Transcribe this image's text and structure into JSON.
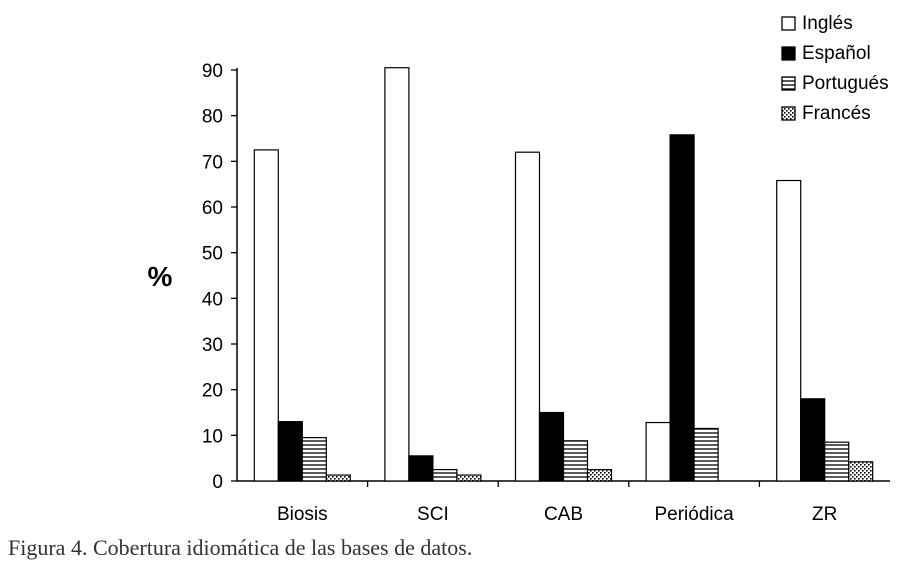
{
  "chart_data": {
    "type": "bar",
    "categories": [
      "Biosis",
      "SCI",
      "CAB",
      "Periódica",
      "ZR"
    ],
    "series": [
      {
        "name": "Inglés",
        "values": [
          72.5,
          90.5,
          72,
          12.8,
          65.8
        ]
      },
      {
        "name": "Español",
        "values": [
          13,
          5.5,
          15,
          75.8,
          18
        ]
      },
      {
        "name": "Portugués",
        "values": [
          9.5,
          2.5,
          8.8,
          11.5,
          8.5
        ]
      },
      {
        "name": "Francés",
        "values": [
          1.3,
          1.3,
          2.5,
          0,
          4.2
        ]
      }
    ],
    "ylabel": "%",
    "ylim": [
      0,
      90
    ],
    "yticks": [
      "0",
      "10",
      "20",
      "30",
      "40",
      "50",
      "60",
      "70",
      "80",
      "90"
    ],
    "legend_position": "top-right",
    "grid": false
  },
  "caption": "Figura 4. Cobertura idiomática de las bases de datos."
}
